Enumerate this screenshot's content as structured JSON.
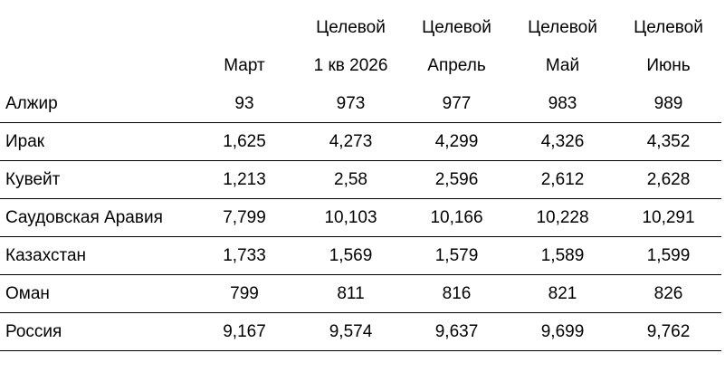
{
  "table": {
    "header_row1": [
      "",
      "",
      "Целевой",
      "Целевой",
      "Целевой",
      "Целевой"
    ],
    "header_row2": [
      "",
      "Март",
      "1 кв 2026",
      "Апрель",
      "Май",
      "Июнь"
    ],
    "rows": [
      {
        "country": "Алжир",
        "values": [
          "93",
          "973",
          "977",
          "983",
          "989"
        ]
      },
      {
        "country": "Ирак",
        "values": [
          "1,625",
          "4,273",
          "4,299",
          "4,326",
          "4,352"
        ]
      },
      {
        "country": "Кувейт",
        "values": [
          "1,213",
          "2,58",
          "2,596",
          "2,612",
          "2,628"
        ]
      },
      {
        "country": "Саудовская Аравия",
        "values": [
          "7,799",
          "10,103",
          "10,166",
          "10,228",
          "10,291"
        ]
      },
      {
        "country": "Казахстан",
        "values": [
          "1,733",
          "1,569",
          "1,579",
          "1,589",
          "1,599"
        ]
      },
      {
        "country": "Оман",
        "values": [
          "799",
          "811",
          "816",
          "821",
          "826"
        ]
      },
      {
        "country": "Россия",
        "values": [
          "9,167",
          "9,574",
          "9,637",
          "9,699",
          "9,762"
        ]
      }
    ]
  }
}
